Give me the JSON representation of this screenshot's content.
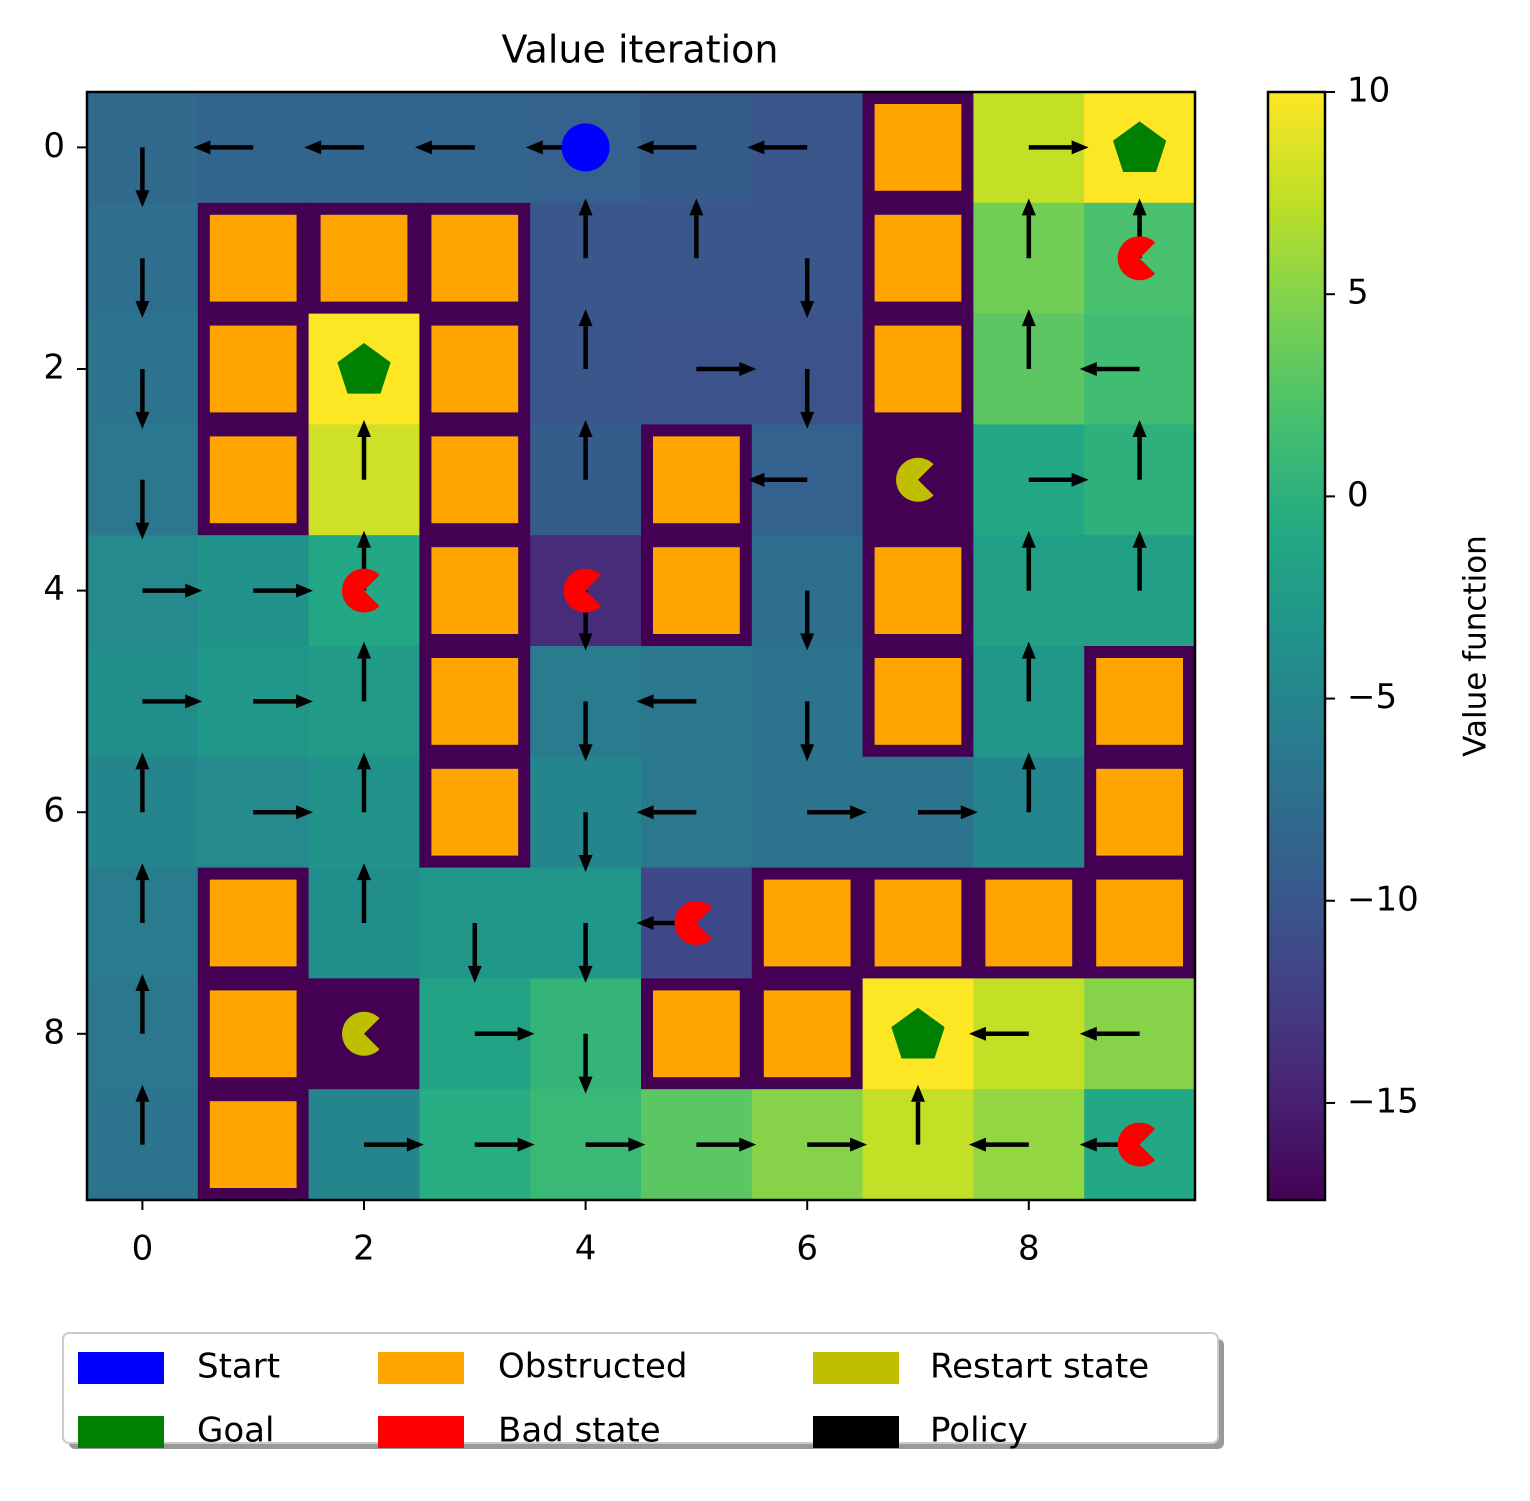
{
  "chart_data": {
    "type": "heatmap",
    "title": "Value iteration",
    "colorbar_label": "Value function",
    "colormap": "viridis",
    "xlim": [
      -0.5,
      9.5
    ],
    "ylim": [
      9.5,
      -0.5
    ],
    "xticks": [
      0,
      2,
      4,
      6,
      8
    ],
    "yticks": [
      0,
      2,
      4,
      6,
      8
    ],
    "clim": [
      -17.4,
      10
    ],
    "cticks": [
      {
        "value": -15,
        "label": "−15"
      },
      {
        "value": -10,
        "label": "−10"
      },
      {
        "value": -5,
        "label": "−5"
      },
      0,
      5,
      10
    ],
    "values": [
      [
        -8,
        -8.5,
        -8.5,
        -8.5,
        -9,
        -9.5,
        -10,
        -17.4,
        7.5,
        10
      ],
      [
        -7.5,
        -17.4,
        -17.4,
        -17.4,
        -10,
        -10,
        -10,
        -17.4,
        4,
        2
      ],
      [
        -7,
        -17.4,
        10,
        -17.4,
        -10,
        -10.5,
        -10.5,
        -17.4,
        3,
        1.5
      ],
      [
        -6.5,
        -17.4,
        8,
        -17.4,
        -9.5,
        -17.4,
        -9,
        -17.4,
        -1,
        0
      ],
      [
        -4.5,
        -3.5,
        -1,
        -17.4,
        -14,
        -17.4,
        -7.5,
        -17.4,
        -2,
        -2
      ],
      [
        -4,
        -3,
        -2.5,
        -17.4,
        -6,
        -6.5,
        -7,
        -17.4,
        -3,
        -17.4
      ],
      [
        -5,
        -4.5,
        -3.5,
        -17.4,
        -5,
        -6.5,
        -7,
        -7,
        -5,
        -17.4
      ],
      [
        -6,
        -17.4,
        -4,
        -3,
        -3,
        -11.5,
        -17.4,
        -17.4,
        -17.4,
        -17.4
      ],
      [
        -6.5,
        -17.4,
        -17.4,
        -1.5,
        0.5,
        -17.4,
        -17.4,
        10,
        7.5,
        5
      ],
      [
        -7,
        -17.4,
        -5,
        -0.5,
        1,
        3,
        5,
        7.5,
        5.5,
        -1
      ]
    ],
    "policy": [
      [
        "D",
        "L",
        "L",
        "L",
        "L",
        "L",
        "L",
        null,
        "R",
        null
      ],
      [
        "D",
        null,
        null,
        null,
        "U",
        "U",
        "D",
        null,
        "U",
        "U"
      ],
      [
        "D",
        null,
        null,
        null,
        "U",
        "R",
        "D",
        null,
        "U",
        "L"
      ],
      [
        "D",
        null,
        "U",
        null,
        "U",
        null,
        "L",
        null,
        "R",
        "U"
      ],
      [
        "R",
        "R",
        "U",
        null,
        "D",
        null,
        "D",
        null,
        "U",
        "U"
      ],
      [
        "R",
        "R",
        "U",
        null,
        "D",
        "L",
        "D",
        null,
        "U",
        null
      ],
      [
        "U",
        "R",
        "U",
        null,
        "D",
        "L",
        "R",
        "R",
        "U",
        null
      ],
      [
        "U",
        null,
        "U",
        "D",
        "D",
        "L",
        null,
        null,
        null,
        null
      ],
      [
        "U",
        null,
        null,
        "R",
        "D",
        null,
        null,
        null,
        "L",
        "L"
      ],
      [
        "U",
        null,
        "R",
        "R",
        "R",
        "R",
        "R",
        "U",
        "L",
        "L"
      ]
    ],
    "obstructed": [
      [
        0,
        7
      ],
      [
        1,
        1
      ],
      [
        1,
        2
      ],
      [
        1,
        3
      ],
      [
        1,
        7
      ],
      [
        2,
        1
      ],
      [
        2,
        3
      ],
      [
        2,
        7
      ],
      [
        3,
        1
      ],
      [
        3,
        3
      ],
      [
        3,
        5
      ],
      [
        4,
        3
      ],
      [
        4,
        5
      ],
      [
        4,
        7
      ],
      [
        5,
        3
      ],
      [
        5,
        7
      ],
      [
        5,
        9
      ],
      [
        6,
        3
      ],
      [
        6,
        9
      ],
      [
        7,
        1
      ],
      [
        7,
        6
      ],
      [
        7,
        7
      ],
      [
        7,
        8
      ],
      [
        7,
        9
      ],
      [
        8,
        1
      ],
      [
        8,
        5
      ],
      [
        8,
        6
      ],
      [
        9,
        1
      ]
    ],
    "start": [
      [
        0,
        4
      ]
    ],
    "goals": [
      [
        0,
        9
      ],
      [
        2,
        2
      ],
      [
        8,
        7
      ]
    ],
    "bad_states": [
      [
        1,
        9
      ],
      [
        4,
        2
      ],
      [
        4,
        4
      ],
      [
        7,
        5
      ],
      [
        9,
        9
      ]
    ],
    "restart_states": [
      [
        3,
        7
      ],
      [
        8,
        2
      ]
    ],
    "legend": [
      {
        "name": "Start",
        "color": "#0000ff"
      },
      {
        "name": "Goal",
        "color": "#008000"
      },
      {
        "name": "Obstructed",
        "color": "#ffa500"
      },
      {
        "name": "Bad state",
        "color": "#ff0000"
      },
      {
        "name": "Restart state",
        "color": "#bfbf00"
      },
      {
        "name": "Policy",
        "color": "#000000"
      }
    ]
  }
}
